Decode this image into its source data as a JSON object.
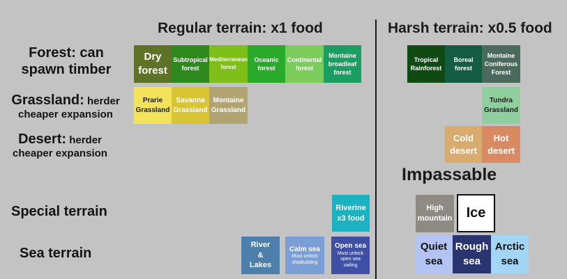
{
  "headers": {
    "regular": "Regular terrain: x1 food",
    "harsh": "Harsh terrain: x0.5 food",
    "impassable": "Impassable"
  },
  "row_labels": {
    "forest_1": "Forest: can",
    "forest_2": "spawn timber",
    "grassland_main": "Grassland:",
    "grassland_tail": " herder",
    "grassland_2": "cheaper expansion",
    "desert_main": "Desert:",
    "desert_tail": " herder",
    "desert_2": "cheaper expansion",
    "special": "Special terrain",
    "sea": "Sea terrain"
  },
  "tiles": {
    "dry_forest": {
      "line1": "Dry",
      "line2": "forest",
      "color": "#5f7327"
    },
    "subtropical_forest": {
      "line1": "Subtropical",
      "line2": "forest",
      "color": "#2f8a1e"
    },
    "mediterranean_forest": {
      "line1": "Mediterranean",
      "line2": "forest",
      "color": "#7fbf1a"
    },
    "oceanic_forest": {
      "line1": "Oceanic",
      "line2": "forest",
      "color": "#2aaa2a"
    },
    "continental_forest": {
      "line1": "Continental",
      "line2": "forest",
      "color": "#7ccc5b"
    },
    "montaine_broadleaf_forest": {
      "line1": "Montaine",
      "line2": "broadleaf",
      "line3": "forest",
      "color": "#1a9e62"
    },
    "prarie_grassland": {
      "line1": "Prarie",
      "line2": "Grassland",
      "color": "#f3e35a"
    },
    "savanna_grassland": {
      "line1": "Savanna",
      "line2": "Grassland",
      "color": "#d9c534"
    },
    "montaine_grassland": {
      "line1": "Montaine",
      "line2": "Grassland",
      "color": "#b1a470"
    },
    "tropical_rainforest": {
      "line1": "Tropical",
      "line2": "Rainforest",
      "color": "#0f4a13"
    },
    "boreal_forest": {
      "line1": "Boreal",
      "line2": "forest",
      "color": "#155c44"
    },
    "montaine_coniferous_forest": {
      "line1": "Montaine",
      "line2": "Coniferous",
      "line3": "Forest",
      "color": "#4a6a5e"
    },
    "tundra_grassland": {
      "line1": "Tundra",
      "line2": "Grassland",
      "color": "#8fcf9e"
    },
    "cold_desert": {
      "line1": "Cold",
      "line2": "desert",
      "color": "#d8ac6e"
    },
    "hot_desert": {
      "line1": "Hot",
      "line2": "desert",
      "color": "#d98a62"
    },
    "riverine": {
      "line1": "Riverine",
      "line2": "x3 food",
      "color": "#1bb3c2"
    },
    "high_mountain": {
      "line1": "High",
      "line2": "mountain",
      "color": "#8e8a84"
    },
    "ice": {
      "line1": "Ice",
      "color": "#ffffff"
    },
    "river_lakes": {
      "line1": "River",
      "line2": "&",
      "line3": "Lakes",
      "color": "#4d7fac"
    },
    "calm_sea": {
      "line1": "Calm sea",
      "sub1": "Must unlock",
      "sub2": "shipbuilding",
      "color": "#7a9fd6"
    },
    "open_sea": {
      "line1": "Open sea",
      "sub1": "Must unlock",
      "sub2": "open sea",
      "sub3": "sailing",
      "color": "#3f4fa6"
    },
    "quiet_sea": {
      "line1": "Quiet",
      "line2": "sea",
      "color": "#b4c4f2"
    },
    "rough_sea": {
      "line1": "Rough",
      "line2": "sea",
      "color": "#2a3570"
    },
    "arctic_sea": {
      "line1": "Arctic",
      "line2": "sea",
      "color": "#a3d6f4"
    }
  }
}
